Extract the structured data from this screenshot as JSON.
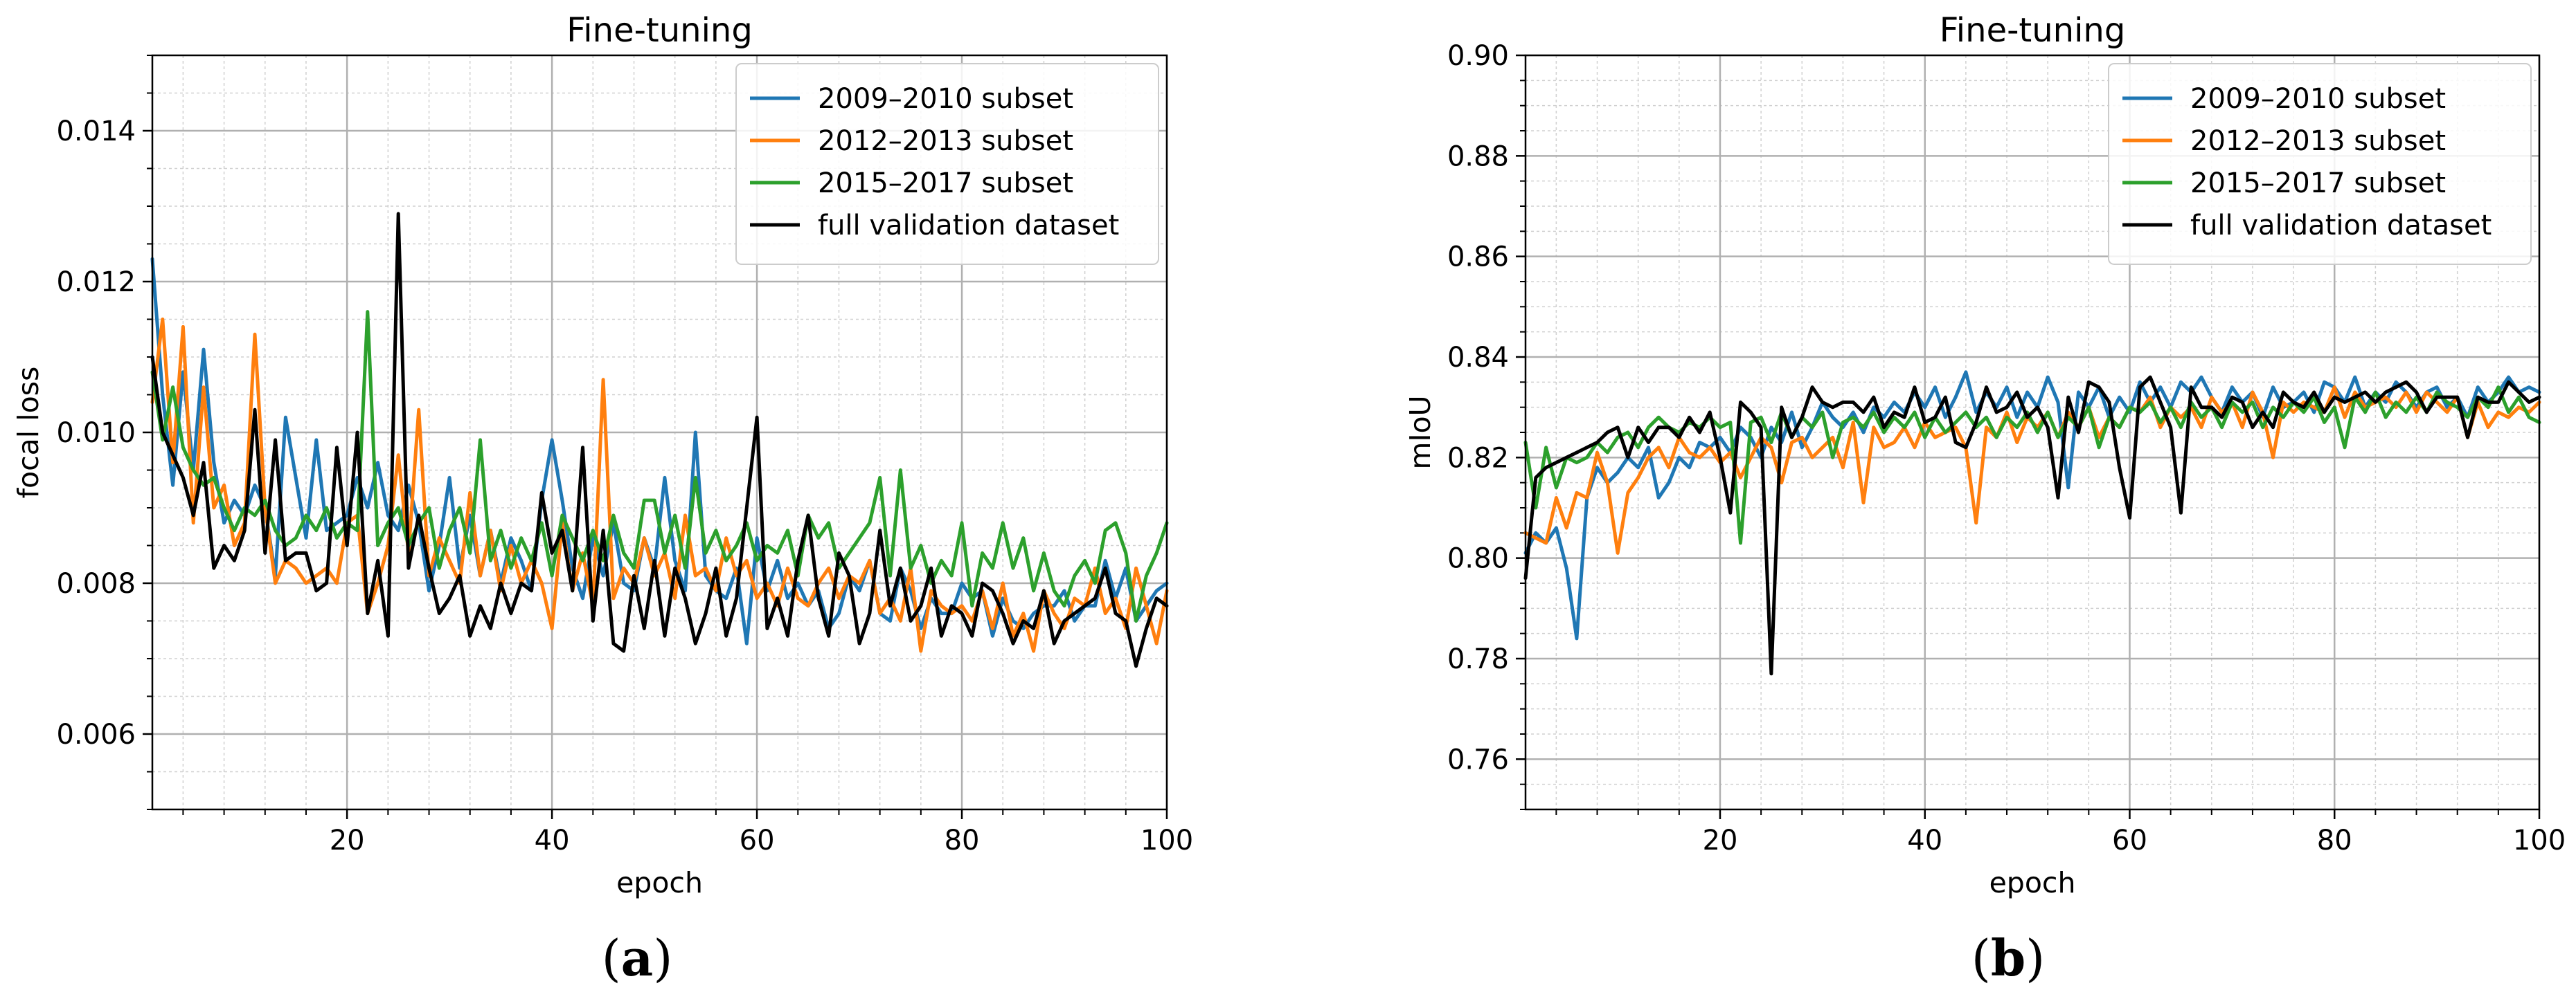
{
  "figure": {
    "panel_labels": [
      "(a)",
      "(b)"
    ]
  },
  "chart_data": [
    {
      "type": "line",
      "title": "Fine-tuning",
      "xlabel": "epoch",
      "ylabel": "focal loss",
      "xlim": [
        1,
        100
      ],
      "ylim": [
        0.005,
        0.015
      ],
      "xticks": [
        20,
        40,
        60,
        80,
        100
      ],
      "xtick_labels": [
        "20",
        "40",
        "60",
        "80",
        "100"
      ],
      "yticks": [
        0.006,
        0.008,
        0.01,
        0.012,
        0.014
      ],
      "ytick_labels": [
        "0.006",
        "0.008",
        "0.010",
        "0.012",
        "0.014"
      ],
      "grid": true,
      "minor_grid": true,
      "legend_position": "top-right",
      "series": [
        {
          "name": "2009–2010 subset",
          "color": "#1f77b4",
          "x_start": 1,
          "values": [
            0.0123,
            0.0105,
            0.0093,
            0.0108,
            0.0095,
            0.0111,
            0.0096,
            0.0088,
            0.0091,
            0.0089,
            0.0093,
            0.009,
            0.0081,
            0.0102,
            0.0094,
            0.0086,
            0.0099,
            0.0087,
            0.0088,
            0.0089,
            0.0094,
            0.009,
            0.0096,
            0.0089,
            0.0087,
            0.0093,
            0.0088,
            0.0079,
            0.0085,
            0.0094,
            0.0082,
            0.0089,
            0.0081,
            0.0087,
            0.008,
            0.0086,
            0.0083,
            0.0079,
            0.0091,
            0.0099,
            0.0091,
            0.0082,
            0.0078,
            0.0086,
            0.0081,
            0.0088,
            0.008,
            0.0079,
            0.0086,
            0.0082,
            0.0094,
            0.0083,
            0.0079,
            0.01,
            0.0081,
            0.0079,
            0.0078,
            0.0082,
            0.0072,
            0.0086,
            0.0079,
            0.0083,
            0.0078,
            0.008,
            0.0077,
            0.0079,
            0.0074,
            0.0076,
            0.0081,
            0.0079,
            0.0083,
            0.0076,
            0.0075,
            0.0082,
            0.0079,
            0.0074,
            0.0078,
            0.0076,
            0.0076,
            0.008,
            0.0078,
            0.0079,
            0.0073,
            0.0078,
            0.0075,
            0.0074,
            0.0076,
            0.0077,
            0.0077,
            0.0079,
            0.0075,
            0.0077,
            0.0077,
            0.0083,
            0.0078,
            0.0082,
            0.0075,
            0.0077,
            0.0079,
            0.008
          ]
        },
        {
          "name": "2012–2013 subset",
          "color": "#ff7f0e",
          "x_start": 1,
          "values": [
            0.0104,
            0.0115,
            0.0096,
            0.0114,
            0.0088,
            0.0106,
            0.009,
            0.0093,
            0.0085,
            0.0088,
            0.0113,
            0.009,
            0.008,
            0.0083,
            0.0082,
            0.008,
            0.0081,
            0.0082,
            0.008,
            0.0088,
            0.0089,
            0.0076,
            0.008,
            0.0085,
            0.0097,
            0.0084,
            0.0103,
            0.0081,
            0.0086,
            0.0083,
            0.008,
            0.0092,
            0.0081,
            0.0087,
            0.0079,
            0.0085,
            0.008,
            0.0083,
            0.008,
            0.0074,
            0.0088,
            0.0079,
            0.0084,
            0.0077,
            0.0107,
            0.0078,
            0.0082,
            0.008,
            0.0086,
            0.0081,
            0.0084,
            0.0078,
            0.0089,
            0.0081,
            0.0082,
            0.0079,
            0.0086,
            0.0081,
            0.0083,
            0.0078,
            0.008,
            0.0077,
            0.0082,
            0.0078,
            0.0077,
            0.008,
            0.0082,
            0.0078,
            0.0081,
            0.008,
            0.0083,
            0.0076,
            0.0078,
            0.0075,
            0.0082,
            0.0071,
            0.0079,
            0.0077,
            0.0076,
            0.0077,
            0.0075,
            0.0079,
            0.0074,
            0.008,
            0.0073,
            0.0076,
            0.0071,
            0.0079,
            0.0076,
            0.0074,
            0.0078,
            0.0077,
            0.0082,
            0.0076,
            0.0078,
            0.0074,
            0.0082,
            0.0077,
            0.0072,
            0.0079
          ]
        },
        {
          "name": "2015–2017 subset",
          "color": "#2ca02c",
          "x_start": 1,
          "values": [
            0.0108,
            0.0099,
            0.0106,
            0.0098,
            0.0095,
            0.0093,
            0.0094,
            0.009,
            0.0087,
            0.009,
            0.0089,
            0.0091,
            0.0087,
            0.0085,
            0.0086,
            0.0089,
            0.0087,
            0.009,
            0.0086,
            0.0088,
            0.0087,
            0.0116,
            0.0085,
            0.0088,
            0.009,
            0.0085,
            0.0088,
            0.009,
            0.0082,
            0.0087,
            0.009,
            0.0084,
            0.0099,
            0.0083,
            0.0087,
            0.0082,
            0.0086,
            0.0083,
            0.0088,
            0.0081,
            0.0089,
            0.0086,
            0.0083,
            0.0087,
            0.0083,
            0.0089,
            0.0084,
            0.0082,
            0.0091,
            0.0091,
            0.0084,
            0.0089,
            0.0082,
            0.0094,
            0.0084,
            0.0087,
            0.0083,
            0.0085,
            0.0088,
            0.0083,
            0.0085,
            0.0084,
            0.0087,
            0.0081,
            0.0089,
            0.0086,
            0.0088,
            0.0082,
            0.0084,
            0.0086,
            0.0088,
            0.0094,
            0.0081,
            0.0095,
            0.0082,
            0.0085,
            0.008,
            0.0083,
            0.0081,
            0.0088,
            0.0077,
            0.0084,
            0.0082,
            0.0088,
            0.0082,
            0.0086,
            0.0079,
            0.0084,
            0.0079,
            0.0077,
            0.0081,
            0.0083,
            0.008,
            0.0087,
            0.0088,
            0.0084,
            0.0075,
            0.0081,
            0.0084,
            0.0088
          ]
        },
        {
          "name": "full validation dataset",
          "color": "#000000",
          "x_start": 1,
          "values": [
            0.011,
            0.01,
            0.0097,
            0.0094,
            0.0089,
            0.0096,
            0.0082,
            0.0085,
            0.0083,
            0.0087,
            0.0103,
            0.0084,
            0.0099,
            0.0083,
            0.0084,
            0.0084,
            0.0079,
            0.008,
            0.0098,
            0.0085,
            0.01,
            0.0076,
            0.0083,
            0.0073,
            0.0129,
            0.0082,
            0.0089,
            0.0082,
            0.0076,
            0.0078,
            0.0081,
            0.0073,
            0.0077,
            0.0074,
            0.008,
            0.0076,
            0.008,
            0.0079,
            0.0092,
            0.0084,
            0.0087,
            0.0079,
            0.0098,
            0.0075,
            0.0087,
            0.0072,
            0.0071,
            0.0081,
            0.0074,
            0.0083,
            0.0073,
            0.0082,
            0.0078,
            0.0072,
            0.0076,
            0.0082,
            0.0073,
            0.0078,
            0.009,
            0.0102,
            0.0074,
            0.0078,
            0.0073,
            0.0083,
            0.0089,
            0.0078,
            0.0073,
            0.0084,
            0.0081,
            0.0072,
            0.0076,
            0.0087,
            0.0077,
            0.0082,
            0.0075,
            0.0077,
            0.0082,
            0.0073,
            0.0077,
            0.0076,
            0.0073,
            0.008,
            0.0079,
            0.0076,
            0.0072,
            0.0075,
            0.0074,
            0.0079,
            0.0072,
            0.0075,
            0.0076,
            0.0077,
            0.0078,
            0.0082,
            0.0076,
            0.0075,
            0.0069,
            0.0074,
            0.0078,
            0.0077
          ]
        }
      ]
    },
    {
      "type": "line",
      "title": "Fine-tuning",
      "xlabel": "epoch",
      "ylabel": "mIoU",
      "xlim": [
        1,
        100
      ],
      "ylim": [
        0.75,
        0.9
      ],
      "xticks": [
        20,
        40,
        60,
        80,
        100
      ],
      "xtick_labels": [
        "20",
        "40",
        "60",
        "80",
        "100"
      ],
      "yticks": [
        0.76,
        0.78,
        0.8,
        0.82,
        0.84,
        0.86,
        0.88,
        0.9
      ],
      "ytick_labels": [
        "0.76",
        "0.78",
        "0.80",
        "0.82",
        "0.84",
        "0.86",
        "0.88",
        "0.90"
      ],
      "grid": true,
      "minor_grid": true,
      "legend_position": "top-right",
      "series": [
        {
          "name": "2009–2010 subset",
          "color": "#1f77b4",
          "x_start": 1,
          "values": [
            0.801,
            0.805,
            0.803,
            0.806,
            0.798,
            0.784,
            0.812,
            0.818,
            0.815,
            0.817,
            0.82,
            0.818,
            0.822,
            0.812,
            0.815,
            0.82,
            0.818,
            0.823,
            0.822,
            0.824,
            0.821,
            0.826,
            0.824,
            0.82,
            0.826,
            0.823,
            0.829,
            0.822,
            0.826,
            0.831,
            0.828,
            0.826,
            0.829,
            0.825,
            0.83,
            0.828,
            0.831,
            0.829,
            0.833,
            0.83,
            0.834,
            0.828,
            0.832,
            0.837,
            0.829,
            0.833,
            0.83,
            0.834,
            0.828,
            0.833,
            0.83,
            0.836,
            0.831,
            0.814,
            0.833,
            0.83,
            0.834,
            0.828,
            0.832,
            0.829,
            0.835,
            0.831,
            0.834,
            0.83,
            0.835,
            0.833,
            0.836,
            0.832,
            0.829,
            0.834,
            0.831,
            0.833,
            0.828,
            0.834,
            0.83,
            0.831,
            0.833,
            0.829,
            0.835,
            0.834,
            0.831,
            0.836,
            0.83,
            0.833,
            0.831,
            0.835,
            0.833,
            0.83,
            0.833,
            0.834,
            0.83,
            0.832,
            0.828,
            0.834,
            0.831,
            0.833,
            0.836,
            0.833,
            0.834,
            0.833
          ]
        },
        {
          "name": "2012–2013 subset",
          "color": "#ff7f0e",
          "x_start": 1,
          "values": [
            0.805,
            0.804,
            0.803,
            0.812,
            0.806,
            0.813,
            0.812,
            0.821,
            0.815,
            0.801,
            0.813,
            0.816,
            0.82,
            0.822,
            0.818,
            0.824,
            0.821,
            0.82,
            0.822,
            0.819,
            0.821,
            0.816,
            0.82,
            0.824,
            0.822,
            0.815,
            0.823,
            0.824,
            0.82,
            0.822,
            0.824,
            0.818,
            0.827,
            0.811,
            0.826,
            0.822,
            0.823,
            0.826,
            0.822,
            0.827,
            0.824,
            0.825,
            0.826,
            0.822,
            0.807,
            0.826,
            0.824,
            0.829,
            0.823,
            0.828,
            0.826,
            0.829,
            0.824,
            0.829,
            0.826,
            0.83,
            0.824,
            0.828,
            0.826,
            0.83,
            0.829,
            0.832,
            0.826,
            0.83,
            0.828,
            0.83,
            0.826,
            0.832,
            0.829,
            0.831,
            0.826,
            0.833,
            0.829,
            0.82,
            0.831,
            0.829,
            0.831,
            0.83,
            0.829,
            0.834,
            0.828,
            0.833,
            0.83,
            0.831,
            0.832,
            0.83,
            0.833,
            0.829,
            0.833,
            0.831,
            0.829,
            0.832,
            0.824,
            0.831,
            0.826,
            0.829,
            0.828,
            0.83,
            0.829,
            0.831
          ]
        },
        {
          "name": "2015–2017 subset",
          "color": "#2ca02c",
          "x_start": 1,
          "values": [
            0.823,
            0.81,
            0.822,
            0.814,
            0.82,
            0.819,
            0.82,
            0.823,
            0.821,
            0.824,
            0.825,
            0.822,
            0.826,
            0.828,
            0.826,
            0.825,
            0.827,
            0.826,
            0.828,
            0.826,
            0.827,
            0.803,
            0.827,
            0.828,
            0.823,
            0.829,
            0.824,
            0.828,
            0.826,
            0.829,
            0.82,
            0.827,
            0.828,
            0.826,
            0.829,
            0.825,
            0.828,
            0.826,
            0.829,
            0.824,
            0.828,
            0.825,
            0.827,
            0.829,
            0.826,
            0.828,
            0.824,
            0.828,
            0.826,
            0.829,
            0.825,
            0.829,
            0.824,
            0.828,
            0.826,
            0.83,
            0.822,
            0.828,
            0.826,
            0.83,
            0.829,
            0.831,
            0.827,
            0.83,
            0.826,
            0.831,
            0.828,
            0.83,
            0.826,
            0.831,
            0.829,
            0.831,
            0.826,
            0.83,
            0.828,
            0.831,
            0.829,
            0.832,
            0.827,
            0.83,
            0.822,
            0.832,
            0.829,
            0.833,
            0.828,
            0.831,
            0.829,
            0.832,
            0.829,
            0.833,
            0.831,
            0.83,
            0.828,
            0.832,
            0.83,
            0.834,
            0.829,
            0.832,
            0.828,
            0.827
          ]
        },
        {
          "name": "full validation dataset",
          "color": "#000000",
          "x_start": 1,
          "values": [
            0.796,
            0.816,
            0.818,
            0.819,
            0.82,
            0.821,
            0.822,
            0.823,
            0.825,
            0.826,
            0.82,
            0.826,
            0.823,
            0.826,
            0.826,
            0.824,
            0.828,
            0.825,
            0.829,
            0.82,
            0.809,
            0.831,
            0.829,
            0.826,
            0.777,
            0.83,
            0.824,
            0.828,
            0.834,
            0.831,
            0.83,
            0.831,
            0.831,
            0.829,
            0.832,
            0.826,
            0.829,
            0.828,
            0.834,
            0.827,
            0.828,
            0.832,
            0.823,
            0.822,
            0.827,
            0.834,
            0.829,
            0.83,
            0.833,
            0.828,
            0.83,
            0.826,
            0.812,
            0.832,
            0.825,
            0.835,
            0.834,
            0.831,
            0.818,
            0.808,
            0.834,
            0.836,
            0.831,
            0.826,
            0.809,
            0.834,
            0.83,
            0.83,
            0.828,
            0.832,
            0.831,
            0.826,
            0.829,
            0.826,
            0.833,
            0.831,
            0.83,
            0.833,
            0.829,
            0.832,
            0.831,
            0.832,
            0.833,
            0.831,
            0.833,
            0.834,
            0.835,
            0.833,
            0.829,
            0.832,
            0.832,
            0.832,
            0.824,
            0.832,
            0.831,
            0.831,
            0.835,
            0.833,
            0.831,
            0.832
          ]
        }
      ]
    }
  ]
}
